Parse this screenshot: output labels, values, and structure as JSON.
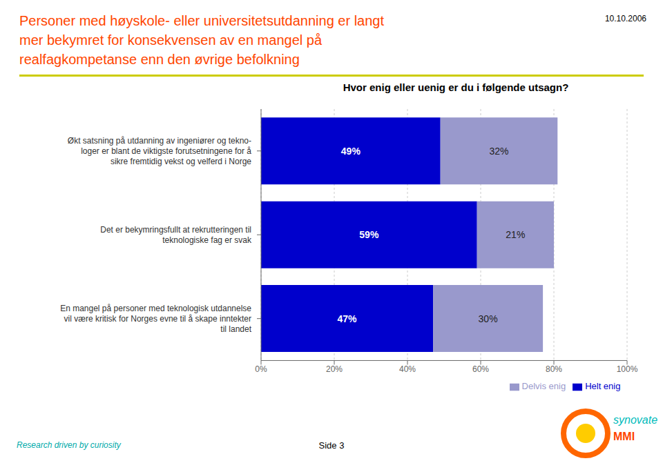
{
  "chart_data": {
    "type": "bar",
    "orientation": "horizontal",
    "stacked": true,
    "data_labels": true,
    "grid": true,
    "legend": "bottom",
    "title": "Personer med høyskole- eller universitetsutdanning er langt\nmer bekymret for konsekvensen av en mangel på\nrealfagkompetanse enn den øvrige befolkning",
    "subtitle": "Hvor enig eller uenig er du i følgende utsagn?",
    "annotations": [
      "10.10.2006",
      "Research driven by curiosity",
      "Side 3",
      "synovate",
      "MMI"
    ],
    "categories": [
      "Økt satsning på utdanning av ingeniører og tekno-\nloger er blant de viktigste forutsetningene for å\nsikre fremtidig vekst og velferd i Norge",
      "Det er bekymringsfullt at rekrutteringen til\nteknologiske fag er svak",
      "En mangel på personer med teknologisk utdannelse\nvil være kritisk for Norges evne til å skape inntekter\ntil landet"
    ],
    "series": [
      {
        "name": "Helt enig",
        "color": "#0000CC",
        "values": [
          49,
          59,
          47
        ],
        "value_labels": [
          "49%",
          "59%",
          "47%"
        ]
      },
      {
        "name": "Delvis enig",
        "color": "#9999CC",
        "values": [
          32,
          21,
          30
        ],
        "value_labels": [
          "32%",
          "21%",
          "30%"
        ]
      }
    ],
    "xlim": [
      0,
      100
    ],
    "xticks": [
      {
        "value": 0,
        "label": "0%"
      },
      {
        "value": 20,
        "label": "20%"
      },
      {
        "value": 40,
        "label": "40%"
      },
      {
        "value": 60,
        "label": "60%"
      },
      {
        "value": 80,
        "label": "80%"
      },
      {
        "value": 100,
        "label": "100%"
      }
    ]
  }
}
